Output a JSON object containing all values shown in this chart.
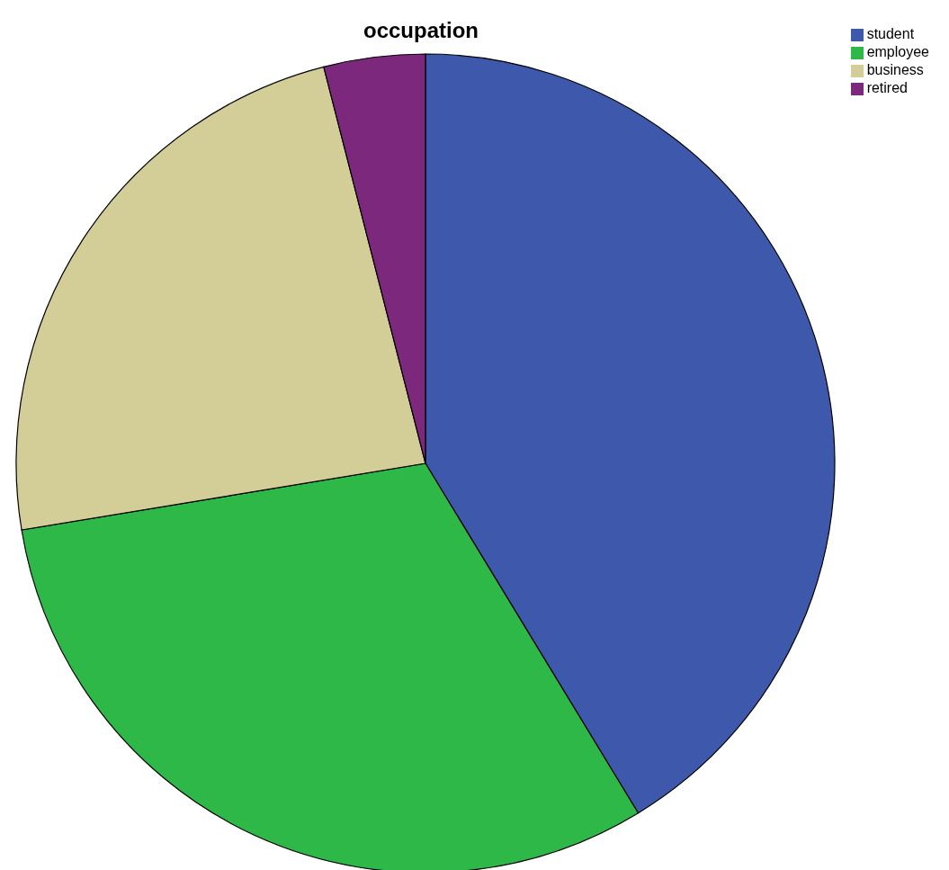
{
  "chart_data": {
    "type": "pie",
    "title": "occupation",
    "categories": [
      "student",
      "employee",
      "business",
      "retired"
    ],
    "values": [
      41.3,
      31.1,
      23.6,
      4.0
    ],
    "colors": [
      "#3e58ac",
      "#2eb848",
      "#d3ce97",
      "#7b287d"
    ],
    "legend": "top right"
  }
}
